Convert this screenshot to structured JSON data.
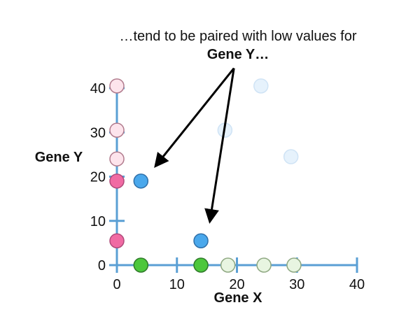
{
  "annotation": {
    "line1": "…tend to be paired with low values for",
    "line2": "Gene Y…"
  },
  "chart_data": {
    "type": "scatter",
    "xlabel": "Gene X",
    "ylabel": "Gene Y",
    "xlim": [
      0,
      40
    ],
    "ylim": [
      0,
      40
    ],
    "xticks": [
      0,
      10,
      20,
      30,
      40
    ],
    "yticks": [
      0,
      10,
      20,
      30,
      40
    ],
    "grid": false,
    "axis_color": "#5a9fd4",
    "scatter_points": [
      {
        "x": 24,
        "y": 40.5,
        "color": "#e6f2fc",
        "stroke": "#cfe3f5"
      },
      {
        "x": 18,
        "y": 30.5,
        "color": "#e6f2fc",
        "stroke": "#cfe3f5"
      },
      {
        "x": 29,
        "y": 24.5,
        "color": "#e6f2fc",
        "stroke": "#cfe3f5"
      },
      {
        "x": 4,
        "y": 19,
        "color": "#4aa8ec",
        "stroke": "#2f6fa8"
      },
      {
        "x": 14,
        "y": 5.5,
        "color": "#4aa8ec",
        "stroke": "#2f6fa8"
      }
    ],
    "y_axis_points": [
      {
        "y": 40.5,
        "color": "#fde4ec",
        "stroke": "#b07a8c"
      },
      {
        "y": 30.5,
        "color": "#fde4ec",
        "stroke": "#b07a8c"
      },
      {
        "y": 24,
        "color": "#fde4ec",
        "stroke": "#b07a8c"
      },
      {
        "y": 19,
        "color": "#f06aa3",
        "stroke": "#b04a7a"
      },
      {
        "y": 5.5,
        "color": "#f06aa3",
        "stroke": "#b04a7a"
      }
    ],
    "x_axis_points": [
      {
        "x": 4,
        "color": "#4cc73c",
        "stroke": "#2f7a2a"
      },
      {
        "x": 14,
        "color": "#4cc73c",
        "stroke": "#2f7a2a"
      },
      {
        "x": 18.5,
        "color": "#e8f5e1",
        "stroke": "#8fa882"
      },
      {
        "x": 24.5,
        "color": "#e8f5e1",
        "stroke": "#8fa882"
      },
      {
        "x": 29.5,
        "color": "#e8f5e1",
        "stroke": "#8fa882"
      }
    ],
    "arrows": [
      {
        "from": [
          19.5,
          44.5
        ],
        "to": [
          6.5,
          22.5
        ]
      },
      {
        "from": [
          19.5,
          44.5
        ],
        "to": [
          15.5,
          10
        ]
      }
    ]
  }
}
